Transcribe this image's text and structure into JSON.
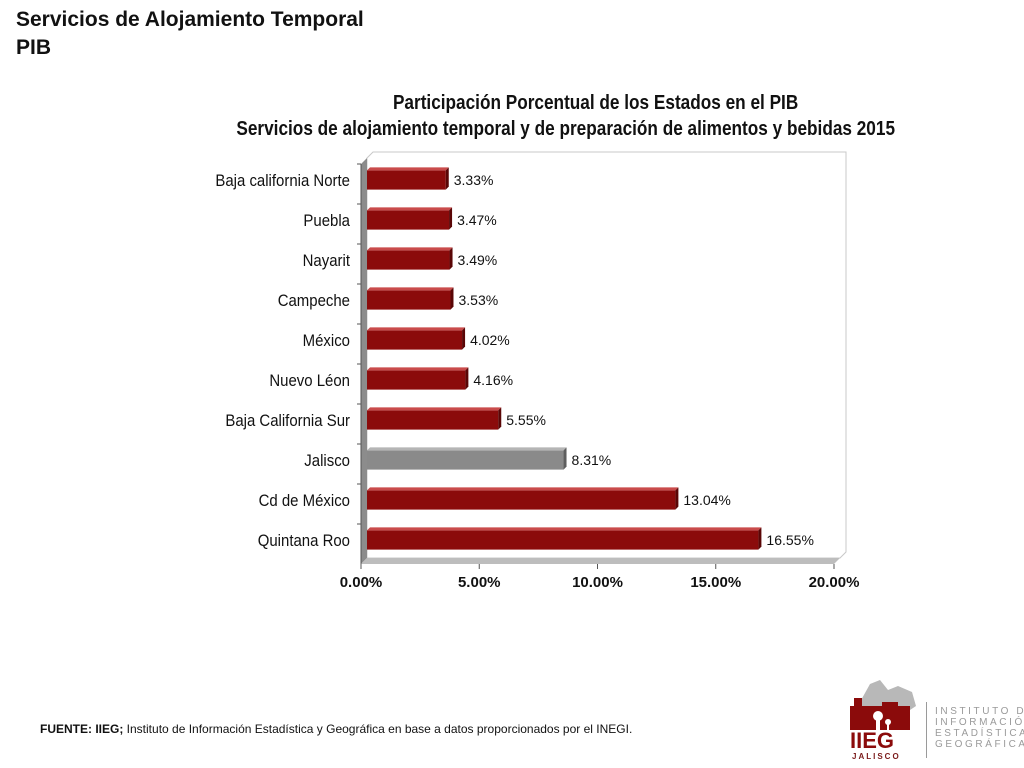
{
  "header": {
    "title_line1": "Servicios de Alojamiento Temporal",
    "title_line2": "PIB"
  },
  "chart_data": {
    "type": "bar",
    "orientation": "horizontal",
    "title": "Participación Porcentual de los Estados  en el PIB",
    "subtitle": "Servicios de alojamiento temporal y de preparación de alimentos y bebidas 2015",
    "categories": [
      "Baja california Norte",
      "Puebla",
      "Nayarit",
      "Campeche",
      "México",
      "Nuevo Léon",
      "Baja California Sur",
      "Jalisco",
      "Cd de México",
      "Quintana Roo"
    ],
    "values": [
      3.33,
      3.47,
      3.49,
      3.53,
      4.02,
      4.16,
      5.55,
      8.31,
      13.04,
      16.55
    ],
    "data_labels": [
      "3.33%",
      "3.47%",
      "3.49%",
      "3.53%",
      "4.02%",
      "4.16%",
      "5.55%",
      "8.31%",
      "13.04%",
      "16.55%"
    ],
    "highlight": "Jalisco",
    "xlim": [
      0,
      20
    ],
    "x_ticks": [
      "0.00%",
      "5.00%",
      "10.00%",
      "15.00%",
      "20.00%"
    ],
    "xlabel": "",
    "ylabel": "",
    "grid": false,
    "colors": {
      "bar": "#8b0b0b",
      "highlight": "#8a8a8a"
    }
  },
  "footer": {
    "source_label": "FUENTE: IIEG;",
    "source_text": " Instituto de Información Estadística y Geográfica en base a datos proporcionados por el INEGI."
  },
  "logo": {
    "acronym": "IIEG",
    "subtitle": "JALISCO",
    "org_lines": [
      "INSTITUTO DE",
      "INFORMACIÓN",
      "ESTADÍSTICA Y",
      "GEOGRÁFICA"
    ]
  }
}
